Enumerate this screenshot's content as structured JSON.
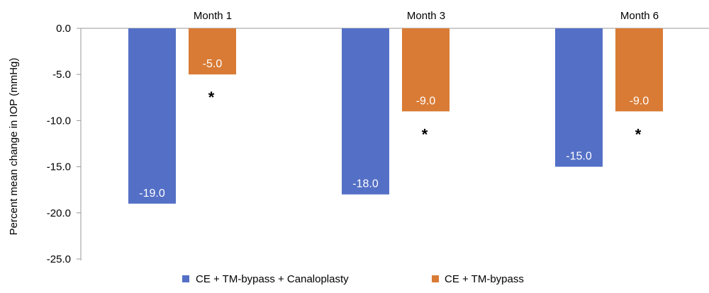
{
  "chart_data": {
    "type": "bar",
    "categories": [
      "Month 1",
      "Month 3",
      "Month 6"
    ],
    "series": [
      {
        "name": "CE + TM-bypass + Canaloplasty",
        "values": [
          -19.0,
          -18.0,
          -15.0
        ],
        "color": "#5470c6",
        "labels": [
          "-19.0",
          "-18.0",
          "-15.0"
        ]
      },
      {
        "name": "CE + TM-bypass",
        "values": [
          -5.0,
          -9.0,
          -9.0
        ],
        "color": "#d97b35",
        "labels": [
          "-5.0",
          "-9.0",
          "-9.0"
        ]
      }
    ],
    "significance_marker": "*",
    "significant_series_index": 1,
    "ylabel": "Percent mean change in IOP (mmHg)",
    "ylim": [
      -25,
      0
    ],
    "yticks": [
      0,
      -5,
      -10,
      -15,
      -20,
      -25
    ],
    "ytick_labels": [
      "0.0",
      "-5.0",
      "-10.0",
      "-15.0",
      "-20.0",
      "-25.0"
    ],
    "category_axis_position": "top",
    "grid": false,
    "legend_position": "bottom"
  }
}
